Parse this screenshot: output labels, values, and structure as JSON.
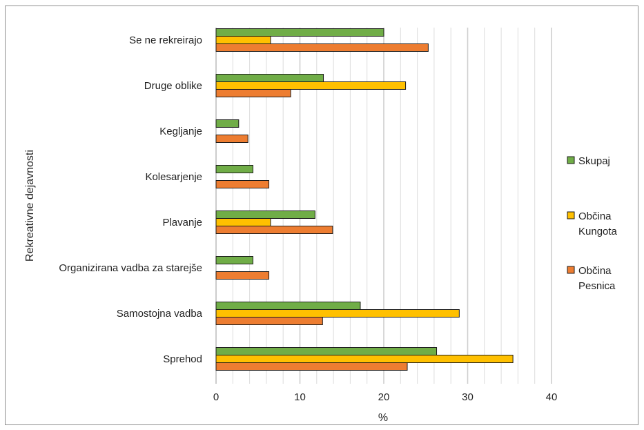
{
  "chart_data": {
    "type": "bar",
    "orientation": "horizontal",
    "ylabel": "Rekreativne dejavnosti",
    "xlabel": "%",
    "xlim": [
      0,
      40
    ],
    "x_ticks": [
      "0",
      "10",
      "20",
      "30",
      "40"
    ],
    "grid": "vertical, every 2",
    "legend_position": "right",
    "categories": [
      "Se ne rekreirajo",
      "Druge oblike",
      "Kegljanje",
      "Kolesarjenje",
      "Plavanje",
      "Organizirana vadba za starejše",
      "Samostojna vadba",
      "Sprehod"
    ],
    "series": [
      {
        "name": "Skupaj",
        "color": "#70ad47",
        "values": [
          20.0,
          12.8,
          2.7,
          4.4,
          11.8,
          4.4,
          17.2,
          26.3
        ]
      },
      {
        "name": "Občina Kungota",
        "color": "#ffc000",
        "values": [
          6.5,
          22.6,
          0,
          0,
          6.5,
          0,
          29.0,
          35.4
        ]
      },
      {
        "name": "Občina Pesnica",
        "color": "#ed7d31",
        "values": [
          25.3,
          8.9,
          3.8,
          6.3,
          13.9,
          6.3,
          12.7,
          22.8
        ]
      }
    ],
    "legend": [
      {
        "lines": [
          "Skupaj"
        ],
        "color": "#70ad47"
      },
      {
        "lines": [
          "Občina",
          "Kungota"
        ],
        "color": "#ffc000"
      },
      {
        "lines": [
          "Občina",
          "Pesnica"
        ],
        "color": "#ed7d31"
      }
    ]
  }
}
